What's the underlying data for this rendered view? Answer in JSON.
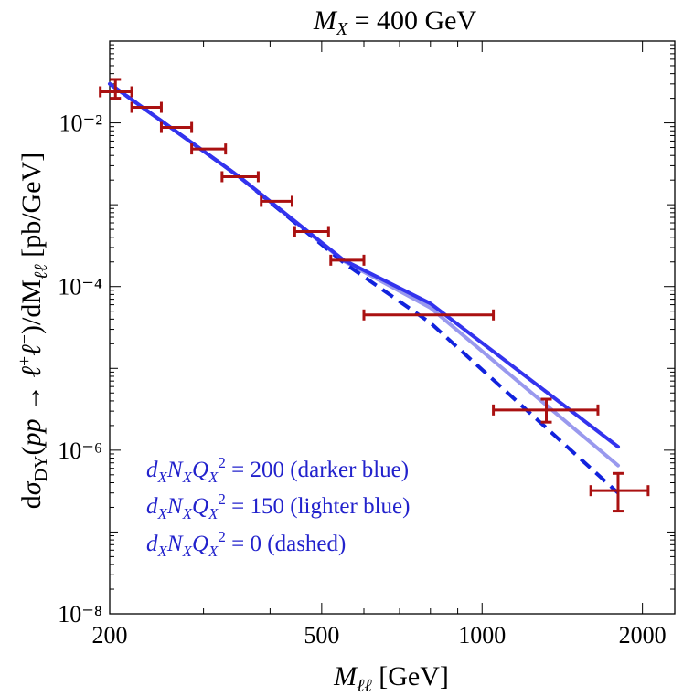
{
  "chart_data": {
    "type": "line",
    "title": "M_X = 400 GeV",
    "xlabel": "M_ℓℓ [GeV]",
    "ylabel": "dσ_DY(pp → ℓ⁺ℓ⁻)/dM_ℓℓ [pb/GeV]",
    "x_scale": "log",
    "y_scale": "log",
    "xlim": [
      200,
      2300
    ],
    "ylim": [
      1e-08,
      0.1
    ],
    "x_ticks": [
      200,
      500,
      1000,
      2000
    ],
    "x_tick_labels": [
      "200",
      "500",
      "1000",
      "2000"
    ],
    "y_ticks": [
      1e-08,
      1e-06,
      0.0001,
      0.01
    ],
    "y_tick_labels": [
      "10⁻⁸",
      "10⁻⁶",
      "10⁻⁴",
      "10⁻²"
    ],
    "series": [
      {
        "color": "#3333ee",
        "style": "solid",
        "x": [
          200,
          350,
          550,
          800,
          1800
        ],
        "y": [
          0.03,
          0.0022,
          0.00021,
          6.2e-05,
          1.1e-06
        ]
      },
      {
        "color": "#9999ee",
        "style": "solid",
        "x": [
          200,
          350,
          550,
          800,
          1800
        ],
        "y": [
          0.03,
          0.0022,
          0.000205,
          5.5e-05,
          6.5e-07
        ]
      },
      {
        "color": "#1122dd",
        "style": "dashed",
        "x": [
          200,
          350,
          550,
          800,
          1800
        ],
        "y": [
          0.03,
          0.0022,
          0.000195,
          3.6e-05,
          3e-07
        ]
      }
    ],
    "data_points": {
      "color": "#aa1111",
      "points": [
        {
          "x": 205,
          "xlo": 192,
          "xhi": 220,
          "y": 0.024,
          "ylo": 0.02,
          "yhi": 0.034
        },
        {
          "x": 230,
          "xlo": 220,
          "xhi": 250,
          "y": 0.0155
        },
        {
          "x": 265,
          "xlo": 250,
          "xhi": 285,
          "y": 0.0088
        },
        {
          "x": 305,
          "xlo": 285,
          "xhi": 330,
          "y": 0.0048
        },
        {
          "x": 350,
          "xlo": 325,
          "xhi": 380,
          "y": 0.0022
        },
        {
          "x": 410,
          "xlo": 385,
          "xhi": 440,
          "y": 0.0011
        },
        {
          "x": 480,
          "xlo": 445,
          "xhi": 515,
          "y": 0.00047
        },
        {
          "x": 560,
          "xlo": 520,
          "xhi": 600,
          "y": 0.00021
        },
        {
          "x": 800,
          "xlo": 600,
          "xhi": 1050,
          "y": 4.5e-05
        },
        {
          "x": 1320,
          "xlo": 1050,
          "xhi": 1650,
          "y": 3.1e-06,
          "ylo": 2.2e-06,
          "yhi": 4.2e-06
        },
        {
          "x": 1800,
          "xlo": 1600,
          "xhi": 2050,
          "y": 3.2e-07,
          "ylo": 1.8e-07,
          "yhi": 5.2e-07
        }
      ]
    },
    "annotations": [
      {
        "text_main": "d",
        "text_sub1": "X",
        "text_mid": "N",
        "text_sub2": "X",
        "text_mid2": "Q",
        "text_sub3": "X",
        "text_sup": "2",
        "text_rest": " = 200 (darker blue)"
      },
      {
        "text_main": "d",
        "text_sub1": "X",
        "text_mid": "N",
        "text_sub2": "X",
        "text_mid2": "Q",
        "text_sub3": "X",
        "text_sup": "2",
        "text_rest": " = 150 (lighter blue)"
      },
      {
        "text_main": "d",
        "text_sub1": "X",
        "text_mid": "N",
        "text_sub2": "X",
        "text_mid2": "Q",
        "text_sub3": "X",
        "text_sup": "2",
        "text_rest": " = 0 (dashed)"
      }
    ],
    "annotation_color": "#2222cc",
    "grid": false
  }
}
